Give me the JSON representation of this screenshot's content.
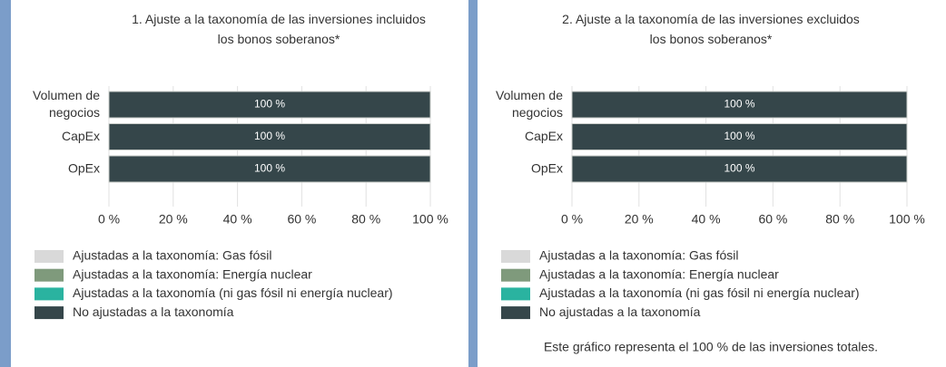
{
  "chart_data": [
    {
      "type": "stacked-bar-horizontal",
      "title": "1. Ajuste a la taxonomía de las inversiones incluidos los bonos soberanos*",
      "categories": [
        "Volumen de negocios",
        "CapEx",
        "OpEx"
      ],
      "series": [
        {
          "name": "Ajustadas a la taxonomía: Gas fósil",
          "color": "#d9d9d9",
          "values": [
            0,
            0,
            0
          ]
        },
        {
          "name": "Ajustadas a la taxonomía: Energía nuclear",
          "color": "#7f9a7c",
          "values": [
            0,
            0,
            0
          ]
        },
        {
          "name": "Ajustadas a la taxonomía (ni gas fósil ni energía nuclear)",
          "color": "#2ab3a0",
          "values": [
            0,
            0,
            0
          ]
        },
        {
          "name": "No ajustadas a la taxonomía",
          "color": "#35464a",
          "values": [
            100,
            100,
            100
          ],
          "value_labels": [
            "100 %",
            "100 %",
            "100 %"
          ]
        }
      ],
      "xlim": [
        0,
        100
      ],
      "xticks": [
        {
          "value": 0,
          "label": "0 %"
        },
        {
          "value": 20,
          "label": "20 %"
        },
        {
          "value": 40,
          "label": "40 %"
        },
        {
          "value": 60,
          "label": "60 %"
        },
        {
          "value": 80,
          "label": "80 %"
        },
        {
          "value": 100,
          "label": "100 %"
        }
      ],
      "legend": "bottom-left"
    },
    {
      "type": "stacked-bar-horizontal",
      "title": "2. Ajuste a la taxonomía de las inversiones excluidos los bonos soberanos*",
      "categories": [
        "Volumen de negocios",
        "CapEx",
        "OpEx"
      ],
      "series": [
        {
          "name": "Ajustadas a la taxonomía: Gas fósil",
          "color": "#d9d9d9",
          "values": [
            0,
            0,
            0
          ]
        },
        {
          "name": "Ajustadas a la taxonomía: Energía nuclear",
          "color": "#7f9a7c",
          "values": [
            0,
            0,
            0
          ]
        },
        {
          "name": "Ajustadas a la taxonomía (ni gas fósil ni energía nuclear)",
          "color": "#2ab3a0",
          "values": [
            0,
            0,
            0
          ]
        },
        {
          "name": "No ajustadas a la taxonomía",
          "color": "#35464a",
          "values": [
            100,
            100,
            100
          ],
          "value_labels": [
            "100 %",
            "100 %",
            "100 %"
          ]
        }
      ],
      "xlim": [
        0,
        100
      ],
      "xticks": [
        {
          "value": 0,
          "label": "0 %"
        },
        {
          "value": 20,
          "label": "20 %"
        },
        {
          "value": 40,
          "label": "40 %"
        },
        {
          "value": 60,
          "label": "60 %"
        },
        {
          "value": 80,
          "label": "80 %"
        },
        {
          "value": 100,
          "label": "100 %"
        }
      ],
      "legend": "bottom-left",
      "note": "Este gráfico representa el 100 % de las inversiones totales."
    }
  ]
}
